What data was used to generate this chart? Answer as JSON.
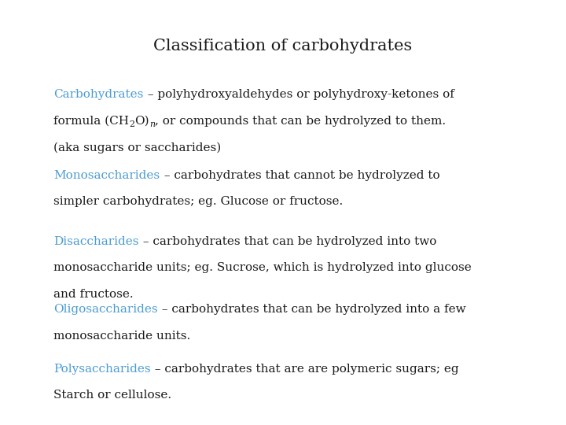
{
  "title": "Classification of carbohydrates",
  "background_color": "#ffffff",
  "title_color": "#1a1a1a",
  "title_fontsize": 15,
  "blue_color": "#4B9CD3",
  "black_color": "#1a1a1a",
  "body_fontsize": 11,
  "font": "DejaVu Serif",
  "sections": [
    {
      "keyword": "Carbohydrates",
      "rest_line1": " – polyhydroxyaldehydes or polyhydroxy-ketones of",
      "line2": "formula (CH$_2$O)$_n$, or compounds that can be hydrolyzed to them.",
      "line3": "(aka sugars or saccharides)",
      "extra_lines": []
    },
    {
      "keyword": "Monosaccharides",
      "rest_line1": " – carbohydrates that cannot be hydrolyzed to",
      "line2": "simpler carbohydrates; eg. Glucose or fructose.",
      "line3": "",
      "extra_lines": []
    },
    {
      "keyword": "Disaccharides",
      "rest_line1": " – carbohydrates that can be hydrolyzed into two",
      "line2": "monosaccharide units; eg. Sucrose, which is hydrolyzed into glucose",
      "line3": "and fructose.",
      "extra_lines": []
    },
    {
      "keyword": "Oligosaccharides",
      "rest_line1": " – carbohydrates that can be hydrolyzed into a few",
      "line2": "monosaccharide units.",
      "line3": "",
      "extra_lines": []
    },
    {
      "keyword": "Polysaccharides",
      "rest_line1": " – carbohydrates that are are polymeric sugars; eg",
      "line2": "Starch or cellulose.",
      "line3": "",
      "extra_lines": []
    }
  ]
}
